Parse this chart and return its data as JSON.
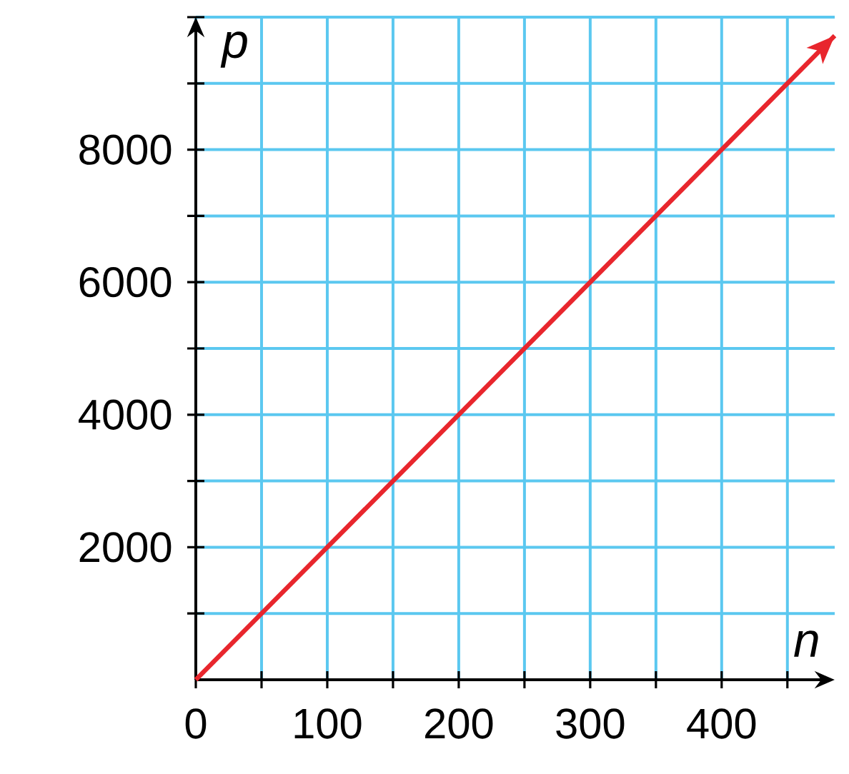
{
  "chart_data": {
    "type": "line",
    "xlabel": "*n*",
    "ylabel": "*p*",
    "x": [
      0,
      486
    ],
    "series": [
      {
        "color": "#e8262d",
        "values": [
          0,
          9720
        ]
      }
    ],
    "xlim": [
      0,
      486
    ],
    "ylim": [
      0,
      10000
    ],
    "xticks": [
      {
        "value": 0,
        "label": "0"
      },
      {
        "value": 50,
        "label": null
      },
      100,
      {
        "value": 150,
        "label": null
      },
      200,
      {
        "value": 250,
        "label": null
      },
      300,
      {
        "value": 350,
        "label": null
      },
      400,
      {
        "value": 450,
        "label": null
      }
    ],
    "yticks": [
      {
        "value": 1000,
        "label": null
      },
      2000,
      {
        "value": 3000,
        "label": null
      },
      4000,
      {
        "value": 5000,
        "label": null
      },
      6000,
      {
        "value": 7000,
        "label": null
      },
      8000,
      {
        "value": 9000,
        "label": null
      },
      {
        "value": 10000,
        "label": null
      }
    ],
    "grid": true,
    "marker": "none",
    "line_style": "solid"
  }
}
